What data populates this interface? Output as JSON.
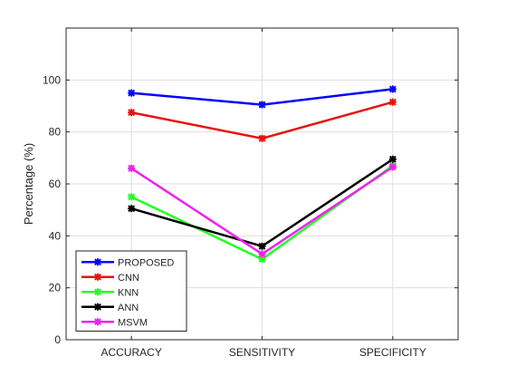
{
  "chart_data": {
    "type": "line",
    "categories": [
      "ACCURACY",
      "SENSITIVITY",
      "SPECIFICITY"
    ],
    "ylabel": "Percentage (%)",
    "xlabel": "",
    "ylim": [
      0,
      120
    ],
    "yticks": [
      0,
      20,
      40,
      60,
      80,
      100
    ],
    "grid": true,
    "legend_position": "bottom-left",
    "series": [
      {
        "name": "PROPOSED",
        "color": "#0000ff",
        "values": [
          95,
          90.5,
          96.5
        ]
      },
      {
        "name": "CNN",
        "color": "#e8120c",
        "values": [
          87.5,
          77.5,
          91.5
        ]
      },
      {
        "name": "KNN",
        "color": "#22ff22",
        "values": [
          55,
          31,
          67
        ]
      },
      {
        "name": "ANN",
        "color": "#000000",
        "values": [
          50.5,
          36,
          69.5
        ]
      },
      {
        "name": "MSVM",
        "color": "#ee22ee",
        "values": [
          66,
          33,
          66.5
        ]
      }
    ]
  }
}
